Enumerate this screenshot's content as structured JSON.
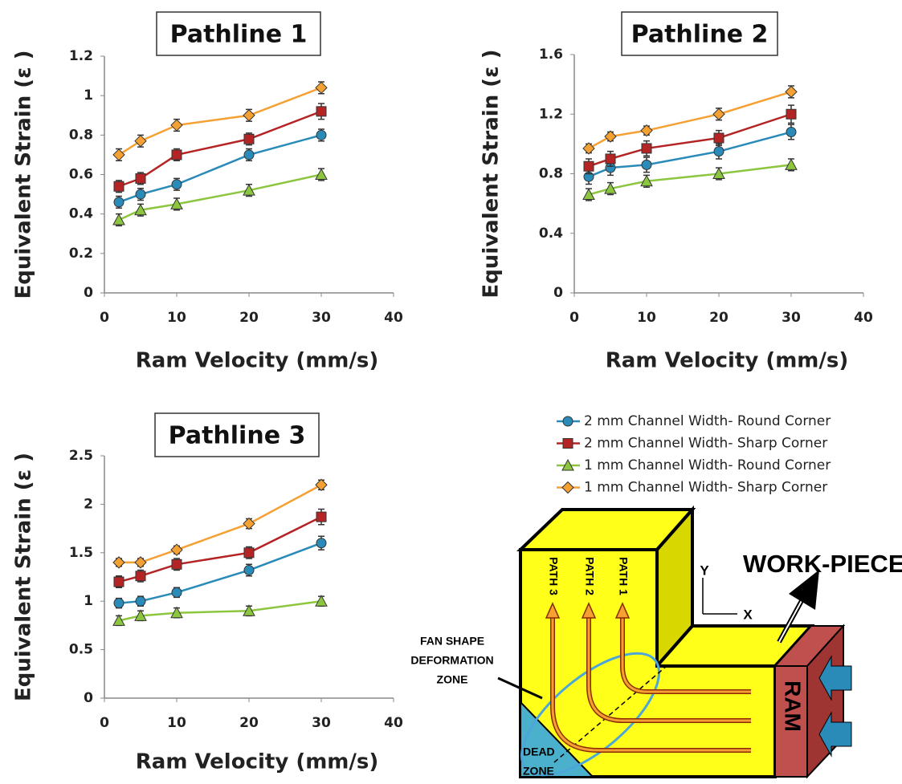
{
  "chart_data": [
    {
      "type": "line",
      "title": "Pathline 1",
      "x_label": "Ram Velocity (mm/s)",
      "y_label": "Equivalent Strain (ε )",
      "x": [
        2,
        5,
        10,
        20,
        30
      ],
      "xlim": [
        0,
        40
      ],
      "xticks": [
        0,
        10,
        20,
        30,
        40
      ],
      "ylim": [
        0,
        1.2
      ],
      "yticks": [
        0,
        0.2,
        0.4,
        0.6,
        0.8,
        1,
        1.2
      ],
      "series": [
        {
          "values": [
            0.46,
            0.5,
            0.55,
            0.7,
            0.8
          ],
          "errors": [
            0.03,
            0.03,
            0.03,
            0.03,
            0.03
          ]
        },
        {
          "values": [
            0.54,
            0.58,
            0.7,
            0.78,
            0.92
          ],
          "errors": [
            0.03,
            0.03,
            0.03,
            0.03,
            0.04
          ]
        },
        {
          "values": [
            0.37,
            0.42,
            0.45,
            0.52,
            0.6
          ],
          "errors": [
            0.03,
            0.03,
            0.03,
            0.03,
            0.03
          ]
        },
        {
          "values": [
            0.7,
            0.77,
            0.85,
            0.9,
            1.04
          ],
          "errors": [
            0.03,
            0.03,
            0.03,
            0.03,
            0.03
          ]
        }
      ]
    },
    {
      "type": "line",
      "title": "Pathline 2",
      "x_label": "Ram Velocity (mm/s)",
      "y_label": "Equivalent Strain (ε )",
      "x": [
        2,
        5,
        10,
        20,
        30
      ],
      "xlim": [
        0,
        40
      ],
      "xticks": [
        0,
        10,
        20,
        30,
        40
      ],
      "ylim": [
        0,
        1.6
      ],
      "yticks": [
        0,
        0.4,
        0.8,
        1.2,
        1.6
      ],
      "series": [
        {
          "values": [
            0.78,
            0.84,
            0.86,
            0.95,
            1.08
          ],
          "errors": [
            0.05,
            0.05,
            0.05,
            0.05,
            0.05
          ]
        },
        {
          "values": [
            0.85,
            0.9,
            0.97,
            1.04,
            1.2
          ],
          "errors": [
            0.05,
            0.05,
            0.05,
            0.05,
            0.06
          ]
        },
        {
          "values": [
            0.66,
            0.7,
            0.75,
            0.8,
            0.86
          ],
          "errors": [
            0.04,
            0.04,
            0.04,
            0.04,
            0.04
          ]
        },
        {
          "values": [
            0.97,
            1.05,
            1.09,
            1.2,
            1.35
          ],
          "errors": [
            0.03,
            0.03,
            0.03,
            0.04,
            0.04
          ]
        }
      ]
    },
    {
      "type": "line",
      "title": "Pathline 3",
      "x_label": "Ram Velocity (mm/s)",
      "y_label": "Equivalent Strain (ε )",
      "x": [
        2,
        5,
        10,
        20,
        30
      ],
      "xlim": [
        0,
        40
      ],
      "xticks": [
        0,
        10,
        20,
        30,
        40
      ],
      "ylim": [
        0,
        2.5
      ],
      "yticks": [
        0,
        0.5,
        1,
        1.5,
        2,
        2.5
      ],
      "series": [
        {
          "values": [
            0.98,
            1.0,
            1.09,
            1.32,
            1.6
          ],
          "errors": [
            0.05,
            0.05,
            0.05,
            0.06,
            0.07
          ]
        },
        {
          "values": [
            1.2,
            1.26,
            1.38,
            1.5,
            1.87
          ],
          "errors": [
            0.06,
            0.06,
            0.06,
            0.06,
            0.08
          ]
        },
        {
          "values": [
            0.8,
            0.85,
            0.88,
            0.9,
            1.0
          ],
          "errors": [
            0.05,
            0.05,
            0.05,
            0.05,
            0.05
          ]
        },
        {
          "values": [
            1.4,
            1.4,
            1.53,
            1.8,
            2.2
          ],
          "errors": [
            0.04,
            0.04,
            0.04,
            0.05,
            0.05
          ]
        }
      ]
    }
  ],
  "legend": [
    {
      "name": "2 mm Channel Width- Round Corner",
      "color": "#2a8ab8",
      "marker": "circle"
    },
    {
      "name": "2 mm Channel Width- Sharp Corner",
      "color": "#b52424",
      "marker": "square"
    },
    {
      "name": "1 mm Channel Width- Round Corner",
      "color": "#8cc63f",
      "marker": "triangle"
    },
    {
      "name": "1 mm Channel Width- Sharp Corner",
      "color": "#f5a033",
      "marker": "diamond"
    }
  ],
  "diagram": {
    "path_labels": [
      "PATH 3",
      "PATH 2",
      "PATH 1"
    ],
    "workpiece": "WORK-PIECE",
    "axis_y": "Y",
    "axis_x": "X",
    "fan_zone": [
      "FAN SHAPE",
      "DEFORMATION",
      "ZONE"
    ],
    "dead_zone": [
      "DEAD",
      "ZONE"
    ],
    "ram": "RAM"
  }
}
